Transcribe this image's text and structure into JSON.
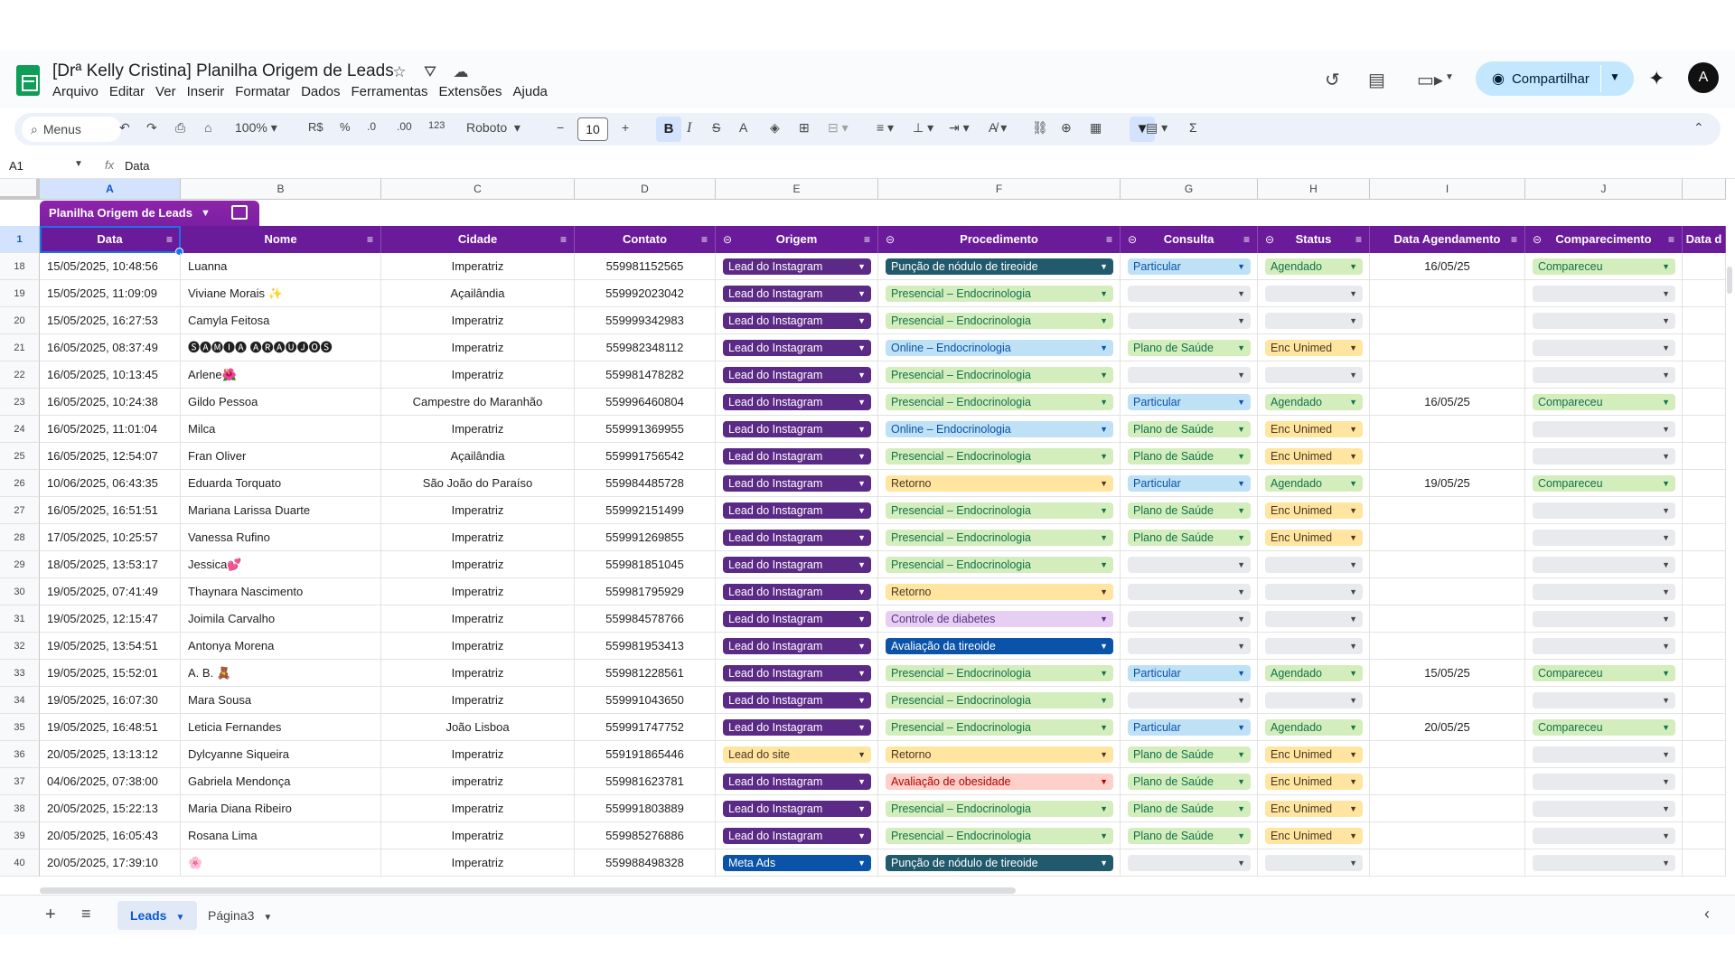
{
  "app": {
    "title": "[Drª Kelly Cristina] Planilha Origem de Leads",
    "menus": [
      "Arquivo",
      "Editar",
      "Ver",
      "Inserir",
      "Formatar",
      "Dados",
      "Ferramentas",
      "Extensões",
      "Ajuda"
    ],
    "share_label": "Compartilhar",
    "avatar_letter": "A"
  },
  "toolbar": {
    "search_label": "Menus",
    "zoom": "100%",
    "currency": "R$",
    "percent": "%",
    "decrease_decimal": ".0",
    "increase_decimal": ".00",
    "number_format": "123",
    "font": "Roboto",
    "font_size": "10"
  },
  "formula_bar": {
    "cell_ref": "A1",
    "fx": "fx",
    "value": "Data"
  },
  "columns": [
    "A",
    "B",
    "C",
    "D",
    "E",
    "F",
    "G",
    "H",
    "I",
    "J"
  ],
  "table": {
    "name": "Planilha Origem de Leads",
    "headers": [
      "Data",
      "Nome",
      "Cidade",
      "Contato",
      "Origem",
      "Procedimento",
      "Consulta",
      "Status",
      "Data Agendamento",
      "Comparecimento",
      "Data d"
    ],
    "header_row_number": "1",
    "rows": [
      {
        "n": "18",
        "data": "15/05/2025, 10:48:56",
        "nome": "Luanna",
        "cidade": "Imperatriz",
        "contato": "559981152565",
        "origem": "Lead do Instagram",
        "proc": "Punção de nódulo de tireoide",
        "consulta": "Particular",
        "status": "Agendado",
        "agend": "16/05/25",
        "comp": "Compareceu"
      },
      {
        "n": "19",
        "data": "15/05/2025, 11:09:09",
        "nome": "Viviane Morais ✨",
        "cidade": "Açailândia",
        "contato": "559992023042",
        "origem": "Lead do Instagram",
        "proc": "Presencial – Endocrinologia",
        "consulta": "",
        "status": "",
        "agend": "",
        "comp": ""
      },
      {
        "n": "20",
        "data": "15/05/2025, 16:27:53",
        "nome": "Camyla Feitosa",
        "cidade": "Imperatriz",
        "contato": "559999342983",
        "origem": "Lead do Instagram",
        "proc": "Presencial – Endocrinologia",
        "consulta": "",
        "status": "",
        "agend": "",
        "comp": ""
      },
      {
        "n": "21",
        "data": "16/05/2025, 08:37:49",
        "nome": "🅢🅐🅜🅘🅐 🅐🅡🅐🅤🅙🅞🅢",
        "cidade": "Imperatriz",
        "contato": "559982348112",
        "origem": "Lead do Instagram",
        "proc": "Online – Endocrinologia",
        "consulta": "Plano de Saúde",
        "status": "Enc Unimed",
        "agend": "",
        "comp": ""
      },
      {
        "n": "22",
        "data": "16/05/2025, 10:13:45",
        "nome": "Arlene🌺",
        "cidade": "Imperatriz",
        "contato": "559981478282",
        "origem": "Lead do Instagram",
        "proc": "Presencial – Endocrinologia",
        "consulta": "",
        "status": "",
        "agend": "",
        "comp": ""
      },
      {
        "n": "23",
        "data": "16/05/2025, 10:24:38",
        "nome": "Gildo Pessoa",
        "cidade": "Campestre do Maranhão",
        "contato": "559996460804",
        "origem": "Lead do Instagram",
        "proc": "Presencial – Endocrinologia",
        "consulta": "Particular",
        "status": "Agendado",
        "agend": "16/05/25",
        "comp": "Compareceu"
      },
      {
        "n": "24",
        "data": "16/05/2025, 11:01:04",
        "nome": "Milca",
        "cidade": "Imperatriz",
        "contato": "559991369955",
        "origem": "Lead do Instagram",
        "proc": "Online – Endocrinologia",
        "consulta": "Plano de Saúde",
        "status": "Enc Unimed",
        "agend": "",
        "comp": ""
      },
      {
        "n": "25",
        "data": "16/05/2025, 12:54:07",
        "nome": "Fran Oliver",
        "cidade": "Açailândia",
        "contato": "559991756542",
        "origem": "Lead do Instagram",
        "proc": "Presencial – Endocrinologia",
        "consulta": "Plano de Saúde",
        "status": "Enc Unimed",
        "agend": "",
        "comp": ""
      },
      {
        "n": "26",
        "data": "10/06/2025, 06:43:35",
        "nome": "Eduarda Torquato",
        "cidade": "São João do Paraíso",
        "contato": "559984485728",
        "origem": "Lead do Instagram",
        "proc": "Retorno",
        "consulta": "Particular",
        "status": "Agendado",
        "agend": "19/05/25",
        "comp": "Compareceu"
      },
      {
        "n": "27",
        "data": "16/05/2025, 16:51:51",
        "nome": "Mariana Larissa Duarte",
        "cidade": "Imperatriz",
        "contato": "559992151499",
        "origem": "Lead do Instagram",
        "proc": "Presencial – Endocrinologia",
        "consulta": "Plano de Saúde",
        "status": "Enc Unimed",
        "agend": "",
        "comp": ""
      },
      {
        "n": "28",
        "data": "17/05/2025, 10:25:57",
        "nome": "Vanessa Rufino",
        "cidade": "Imperatriz",
        "contato": "559991269855",
        "origem": "Lead do Instagram",
        "proc": "Presencial – Endocrinologia",
        "consulta": "Plano de Saúde",
        "status": "Enc Unimed",
        "agend": "",
        "comp": ""
      },
      {
        "n": "29",
        "data": "18/05/2025, 13:53:17",
        "nome": "Jessica💕",
        "cidade": "Imperatriz",
        "contato": "559981851045",
        "origem": "Lead do Instagram",
        "proc": "Presencial – Endocrinologia",
        "consulta": "",
        "status": "",
        "agend": "",
        "comp": ""
      },
      {
        "n": "30",
        "data": "19/05/2025, 07:41:49",
        "nome": "Thaynara Nascimento",
        "cidade": "Imperatriz",
        "contato": "559981795929",
        "origem": "Lead do Instagram",
        "proc": "Retorno",
        "consulta": "",
        "status": "",
        "agend": "",
        "comp": ""
      },
      {
        "n": "31",
        "data": "19/05/2025, 12:15:47",
        "nome": "Joimila Carvalho",
        "cidade": "Imperatriz",
        "contato": "559984578766",
        "origem": "Lead do Instagram",
        "proc": "Controle de diabetes",
        "consulta": "",
        "status": "",
        "agend": "",
        "comp": ""
      },
      {
        "n": "32",
        "data": "19/05/2025, 13:54:51",
        "nome": "Antonya Morena",
        "cidade": "Imperatriz",
        "contato": "559981953413",
        "origem": "Lead do Instagram",
        "proc": "Avaliação da tireoide",
        "consulta": "",
        "status": "",
        "agend": "",
        "comp": ""
      },
      {
        "n": "33",
        "data": "19/05/2025, 15:52:01",
        "nome": "A. B. 🧸",
        "cidade": "Imperatriz",
        "contato": "559981228561",
        "origem": "Lead do Instagram",
        "proc": "Presencial – Endocrinologia",
        "consulta": "Particular",
        "status": "Agendado",
        "agend": "15/05/25",
        "comp": "Compareceu"
      },
      {
        "n": "34",
        "data": "19/05/2025, 16:07:30",
        "nome": "Mara Sousa",
        "cidade": "Imperatriz",
        "contato": "559991043650",
        "origem": "Lead do Instagram",
        "proc": "Presencial – Endocrinologia",
        "consulta": "",
        "status": "",
        "agend": "",
        "comp": ""
      },
      {
        "n": "35",
        "data": "19/05/2025, 16:48:51",
        "nome": "Leticia Fernandes",
        "cidade": "João Lisboa",
        "contato": "559991747752",
        "origem": "Lead do Instagram",
        "proc": "Presencial – Endocrinologia",
        "consulta": "Particular",
        "status": "Agendado",
        "agend": "20/05/25",
        "comp": "Compareceu"
      },
      {
        "n": "36",
        "data": "20/05/2025, 13:13:12",
        "nome": "Dylcyanne Siqueira",
        "cidade": "Imperatriz",
        "contato": "559191865446",
        "origem": "Lead do site",
        "proc": "Retorno",
        "consulta": "Plano de Saúde",
        "status": "Enc Unimed",
        "agend": "",
        "comp": ""
      },
      {
        "n": "37",
        "data": "04/06/2025, 07:38:00",
        "nome": "Gabriela Mendonça",
        "cidade": "imperatriz",
        "contato": "559981623781",
        "origem": "Lead do Instagram",
        "proc": "Avaliação de obesidade",
        "consulta": "Plano de Saúde",
        "status": "Enc Unimed",
        "agend": "",
        "comp": ""
      },
      {
        "n": "38",
        "data": "20/05/2025, 15:22:13",
        "nome": "Maria Diana Ribeiro",
        "cidade": "Imperatriz",
        "contato": "559991803889",
        "origem": "Lead do Instagram",
        "proc": "Presencial – Endocrinologia",
        "consulta": "Plano de Saúde",
        "status": "Enc Unimed",
        "agend": "",
        "comp": ""
      },
      {
        "n": "39",
        "data": "20/05/2025, 16:05:43",
        "nome": "Rosana Lima",
        "cidade": "Imperatriz",
        "contato": "559985276886",
        "origem": "Lead do Instagram",
        "proc": "Presencial – Endocrinologia",
        "consulta": "Plano de Saúde",
        "status": "Enc Unimed",
        "agend": "",
        "comp": ""
      },
      {
        "n": "40",
        "data": "20/05/2025, 17:39:10",
        "nome": "🌸",
        "cidade": "Imperatriz",
        "contato": "559988498328",
        "origem": "Meta Ads",
        "proc": "Punção de nódulo de tireoide",
        "consulta": "",
        "status": "",
        "agend": "",
        "comp": ""
      }
    ]
  },
  "chip_colors": {
    "Lead do Instagram": {
      "bg": "#5b2a86",
      "fg": "#ffffff"
    },
    "Lead do site": {
      "bg": "#ffe5a0",
      "fg": "#473821"
    },
    "Meta Ads": {
      "bg": "#0a53a8",
      "fg": "#ffffff"
    },
    "Punção de nódulo de tireoide": {
      "bg": "#215a6c",
      "fg": "#ffffff"
    },
    "Presencial – Endocrinologia": {
      "bg": "#d4edbc",
      "fg": "#11734b"
    },
    "Online – Endocrinologia": {
      "bg": "#bfe1f6",
      "fg": "#0a53a8"
    },
    "Retorno": {
      "bg": "#ffe5a0",
      "fg": "#473821"
    },
    "Controle de diabetes": {
      "bg": "#e6cff2",
      "fg": "#5a3286"
    },
    "Avaliação da tireoide": {
      "bg": "#0a53a8",
      "fg": "#ffffff"
    },
    "Avaliação de obesidade": {
      "bg": "#ffcfc9",
      "fg": "#b10202"
    },
    "Particular": {
      "bg": "#bfe1f6",
      "fg": "#0a53a8"
    },
    "Plano de Saúde": {
      "bg": "#d4edbc",
      "fg": "#11734b"
    },
    "Agendado": {
      "bg": "#d4edbc",
      "fg": "#11734b"
    },
    "Enc Unimed": {
      "bg": "#ffe5a0",
      "fg": "#473821"
    },
    "Compareceu": {
      "bg": "#d4edbc",
      "fg": "#11734b"
    },
    "empty": {
      "bg": "#e8eaed",
      "fg": "#444746"
    }
  },
  "sheets": {
    "tabs": [
      "Leads",
      "Página3"
    ],
    "active": "Leads"
  }
}
